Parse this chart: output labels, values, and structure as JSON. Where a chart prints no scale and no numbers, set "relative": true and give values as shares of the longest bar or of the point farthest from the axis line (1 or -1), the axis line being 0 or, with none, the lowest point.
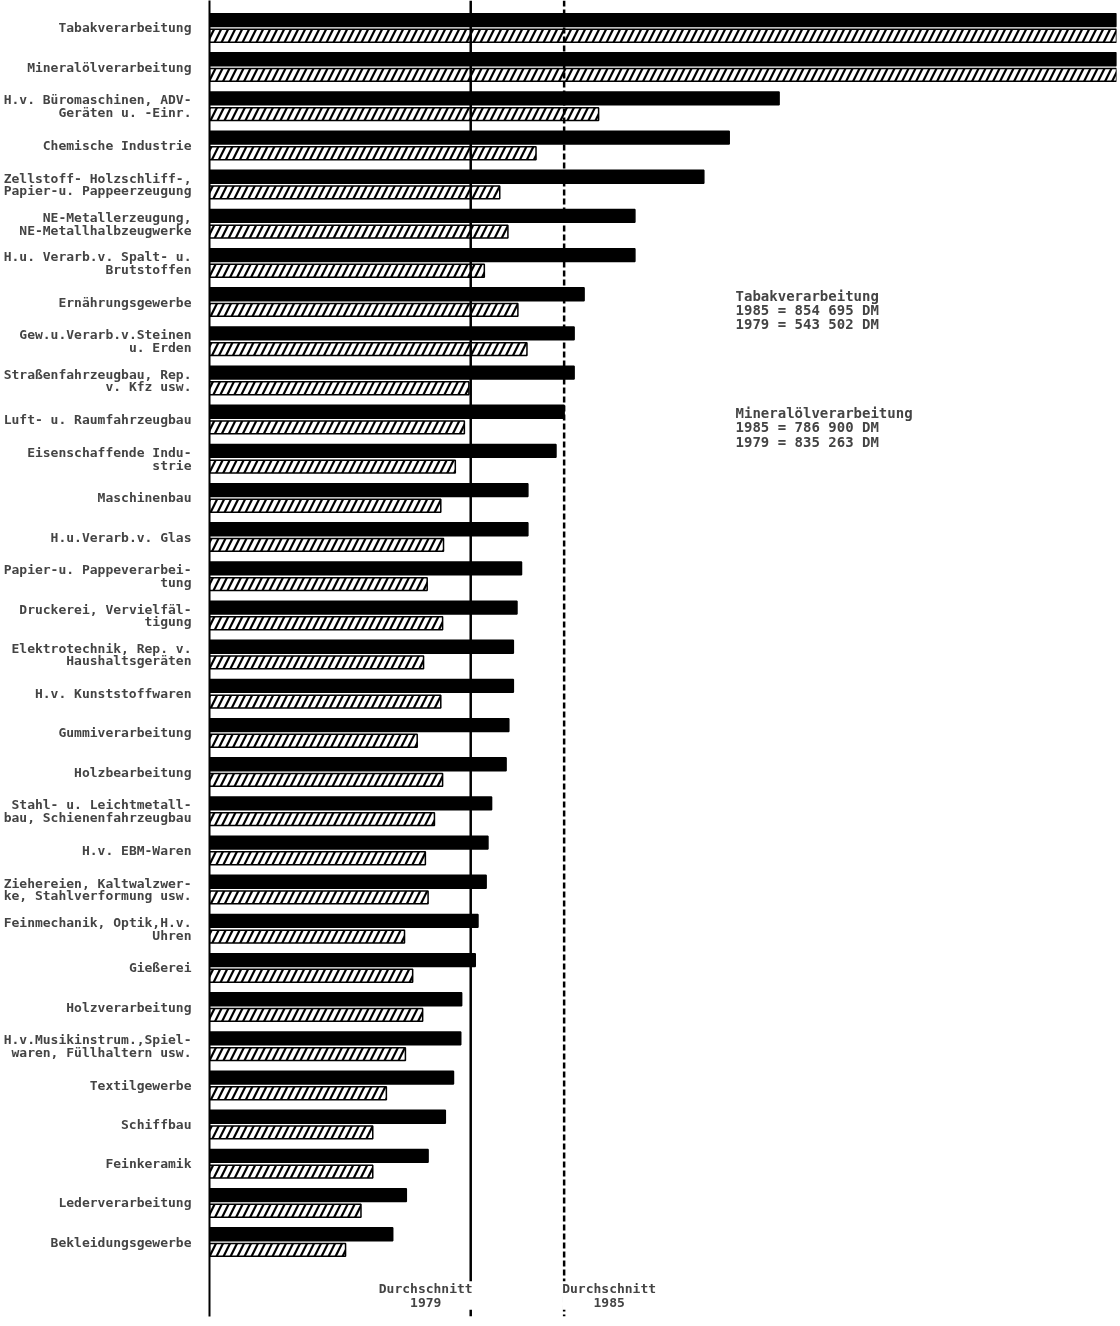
{
  "chart_data": {
    "type": "bar",
    "orientation": "horizontal",
    "relative": true,
    "grid": false,
    "categories": [
      "Tabakverarbeitung",
      "Mineralölverarbeitung",
      "H.v. Büromaschinen, ADV-\nGeräten u. -Einr.",
      "Chemische Industrie",
      "Zellstoff- Holzschliff-,\nPapier-u. Pappeerzeugung",
      "NE-Metallerzeugung,\nNE-Metallhalbzeugwerke",
      "H.u. Verarb.v. Spalt- u.\nBrutstoffen",
      "Ernährungsgewerbe",
      "Gew.u.Verarb.v.Steinen\nu. Erden",
      "Straßenfahrzeugbau, Rep.\nv. Kfz usw.",
      "Luft- u. Raumfahrzeugbau",
      "Eisenschaffende Indu-\nstrie",
      "Maschinenbau",
      "H.u.Verarb.v. Glas",
      "Papier-u. Pappeverarbei-\ntung",
      "Druckerei, Vervielfäl-\ntigung",
      "Elektrotechnik, Rep. v.\nHaushaltsgeräten",
      "H.v. Kunststoffwaren",
      "Gummiverarbeitung",
      "Holzbearbeitung",
      "Stahl- u. Leichtmetall-\nbau, Schienenfahrzeugbau",
      "H.v. EBM-Waren",
      "Ziehereien, Kaltwalzwer-\nke, Stahlverformung usw.",
      "Feinmechanik, Optik,H.v.\nUhren",
      "Gießerei",
      "Holzverarbeitung",
      "H.v.Musikinstrum.,Spiel-\nwaren, Füllhaltern usw.",
      "Textilgewerbe",
      "Schiffbau",
      "Feinkeramik",
      "Lederverarbeitung",
      "Bekleidungsgewerbe"
    ],
    "series": [
      {
        "color": "#000000",
        "values": [
          1.0,
          1.0,
          0.628,
          0.573,
          0.545,
          0.469,
          0.469,
          0.413,
          0.402,
          0.402,
          0.391,
          0.382,
          0.351,
          0.351,
          0.344,
          0.339,
          0.335,
          0.335,
          0.33,
          0.327,
          0.311,
          0.307,
          0.305,
          0.296,
          0.293,
          0.278,
          0.277,
          0.269,
          0.26,
          0.241,
          0.217,
          0.202
        ]
      },
      {
        "color": "#ffffff",
        "values": [
          1.0,
          1.0,
          0.429,
          0.36,
          0.32,
          0.329,
          0.303,
          0.34,
          0.35,
          0.286,
          0.281,
          0.271,
          0.255,
          0.258,
          0.24,
          0.257,
          0.236,
          0.255,
          0.229,
          0.257,
          0.248,
          0.238,
          0.241,
          0.215,
          0.224,
          0.235,
          0.216,
          0.195,
          0.18,
          0.18,
          0.167,
          0.15
        ]
      }
    ],
    "ref_lines": [
      {
        "axis": "x",
        "value": 0.288,
        "label": "Durchschnitt\n1979",
        "line_style": "solid"
      },
      {
        "axis": "x",
        "value": 0.391,
        "label": "Durchschnitt\n1985",
        "line_style": "dashed"
      }
    ],
    "annotations": [
      "Tabakverarbeitung\n1985 = 854 695 DM\n1979 = 543 502 DM",
      "Mineralölverarbeitung\n1985 = 786 900 DM\n1979 = 835 263 DM"
    ]
  }
}
